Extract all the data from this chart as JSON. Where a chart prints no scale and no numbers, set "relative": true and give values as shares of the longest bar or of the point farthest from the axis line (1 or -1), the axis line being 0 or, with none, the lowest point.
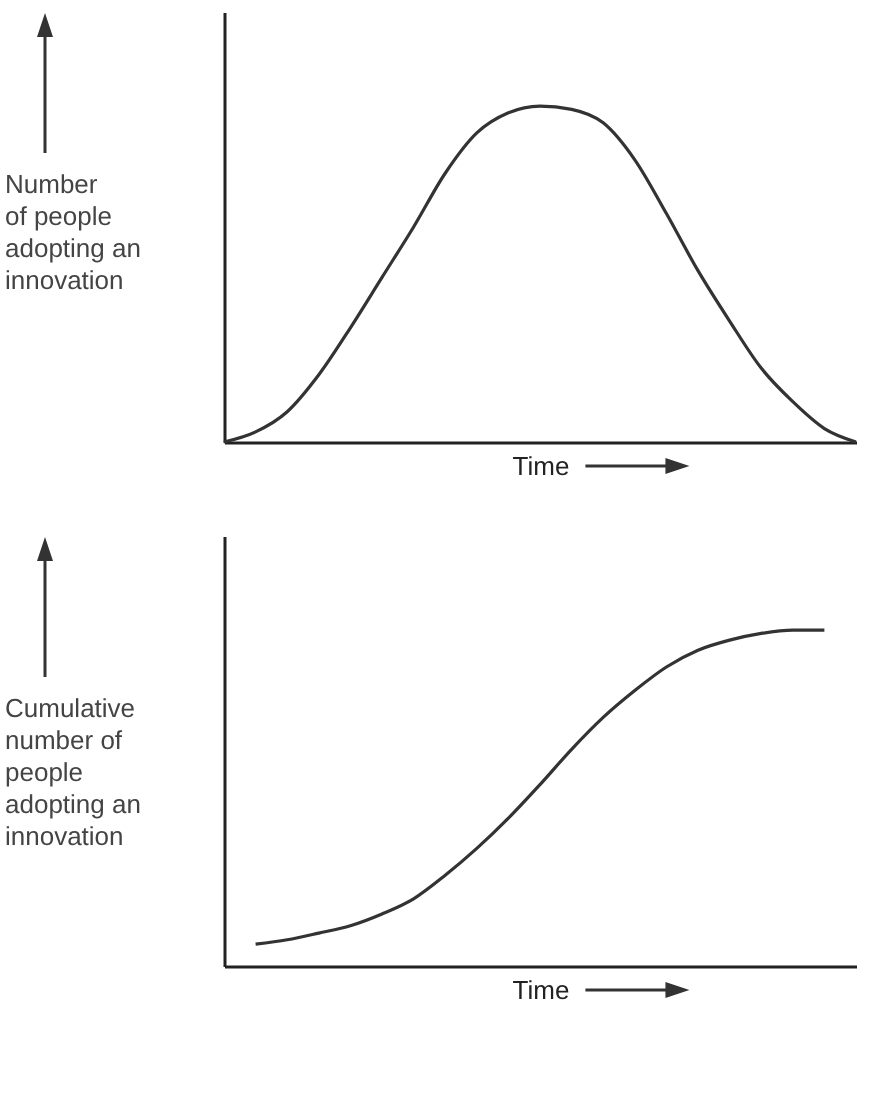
{
  "chart_data": [
    {
      "type": "line",
      "relative": true,
      "xlabel": "Time",
      "ylabel": "Number\nof people\nadopting an\ninnovation",
      "categories": [
        null,
        null,
        null,
        null,
        null,
        null,
        null,
        null,
        null,
        null,
        null,
        null,
        null,
        null,
        null,
        null,
        null,
        null,
        null,
        null,
        null
      ],
      "series": [
        {
          "color": "#333333",
          "values": [
            0,
            0.03,
            0.09,
            0.2,
            0.34,
            0.49,
            0.64,
            0.8,
            0.92,
            0.98,
            1,
            0.99,
            0.95,
            0.84,
            0.68,
            0.51,
            0.36,
            0.22,
            0.12,
            0.04,
            0
          ]
        }
      ]
    },
    {
      "type": "line",
      "relative": true,
      "xlabel": "Time",
      "ylabel": "Cumulative\nnumber of\npeople\nadopting an\ninnovation",
      "categories": [
        null,
        null,
        null,
        null,
        null,
        null,
        null,
        null,
        null,
        null,
        null,
        null,
        null,
        null,
        null,
        null,
        null,
        null,
        null,
        null,
        null
      ],
      "series": [
        {
          "color": "#333333",
          "values": [
            null,
            0.065,
            0.078,
            0.098,
            0.12,
            0.155,
            0.2,
            0.27,
            0.35,
            0.44,
            0.54,
            0.645,
            0.74,
            0.82,
            0.89,
            0.94,
            0.97,
            0.99,
            1,
            1,
            null
          ]
        }
      ]
    }
  ]
}
